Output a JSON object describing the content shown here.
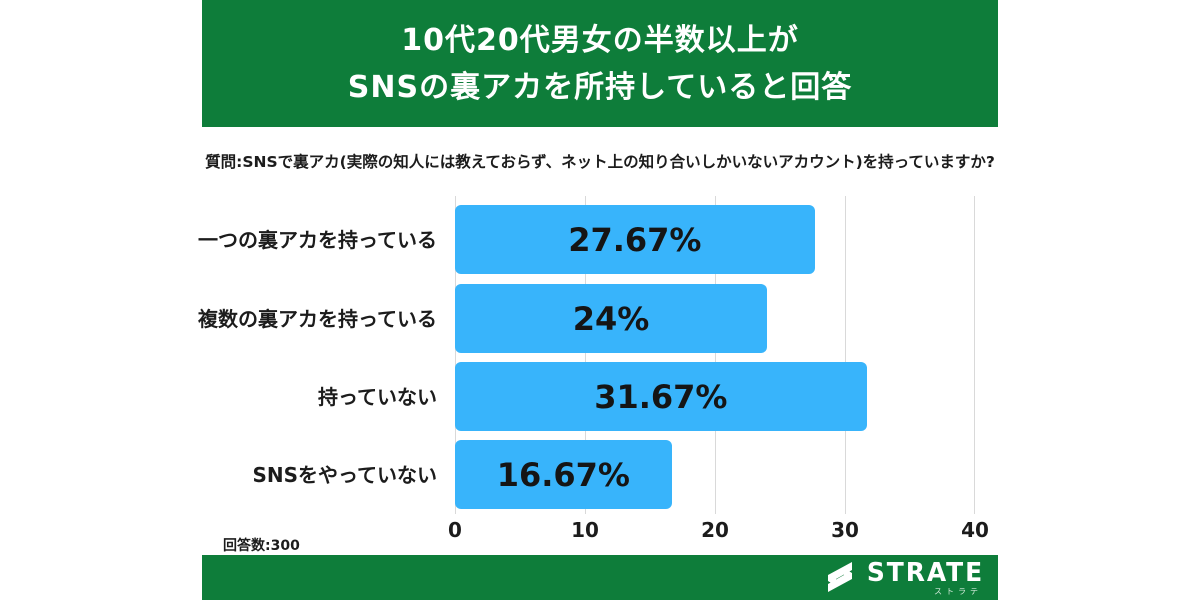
{
  "header": {
    "title_lines": [
      "10代20代男女の半数以上が",
      "SNSの裏アカを所持していると回答"
    ]
  },
  "question": "質問:SNSで裏アカ(実際の知人には教えておらず、ネット上の知り合いしかいないアカウント)を持っていますか?",
  "chart_data": {
    "type": "bar",
    "orientation": "horizontal",
    "title": "",
    "categories": [
      "一つの裏アカを持っている",
      "複数の裏アカを持っている",
      "持っていない",
      "SNSをやっていない"
    ],
    "values": [
      27.67,
      24,
      31.67,
      16.67
    ],
    "value_labels": [
      "27.67%",
      "24%",
      "31.67%",
      "16.67%"
    ],
    "xlim": [
      0,
      40
    ],
    "xticks": [
      0,
      10,
      20,
      30,
      40
    ],
    "grid": true,
    "legend": false
  },
  "footnote": "回答数:300",
  "footer": {
    "brand": "STRATE",
    "brand_kana": "ストラテ"
  },
  "colors": {
    "brand_green": "#0e7d3a",
    "bar_blue": "#38b4fb",
    "grid_line": "#d9d9d9"
  }
}
